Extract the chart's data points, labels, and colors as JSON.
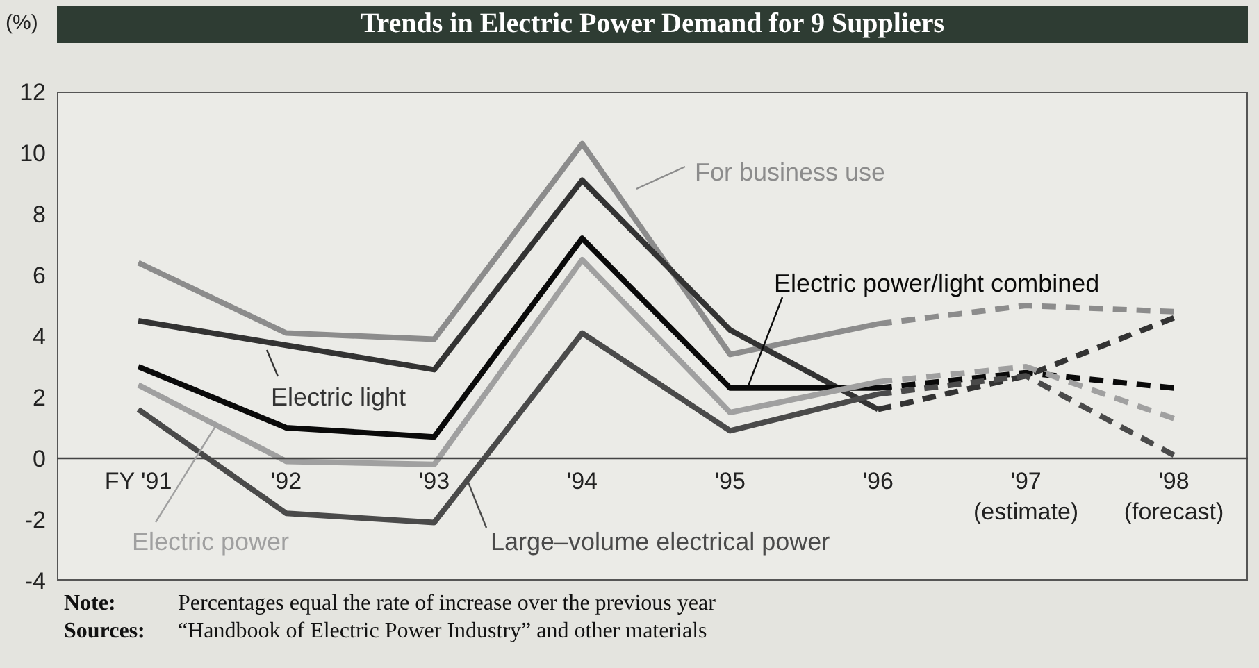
{
  "chart_data": {
    "type": "line",
    "title": "Trends in Electric Power Demand for 9 Suppliers",
    "ylabel": "(%)",
    "categories": [
      "FY '91",
      "'92",
      "'93",
      "'94",
      "'95",
      "'96",
      "'97\n(estimate)",
      "'98\n(forecast)"
    ],
    "series": [
      {
        "name": "For business use",
        "color": "#8c8c8c",
        "line_style": "solid",
        "values": [
          6.4,
          4.1,
          3.9,
          10.3,
          3.4,
          4.4,
          null,
          null
        ]
      },
      {
        "name": "Electric light",
        "color": "#333333",
        "line_style": "solid",
        "values": [
          4.5,
          3.7,
          2.9,
          9.1,
          4.2,
          1.6,
          null,
          null
        ]
      },
      {
        "name": "Electric power/light combined",
        "color": "#0a0a0a",
        "line_style": "solid",
        "values": [
          3.0,
          1.0,
          0.7,
          7.2,
          2.3,
          2.3,
          null,
          null
        ]
      },
      {
        "name": "Electric power",
        "color": "#a0a0a0",
        "line_style": "solid",
        "values": [
          2.4,
          -0.1,
          -0.2,
          6.5,
          1.5,
          2.5,
          null,
          null
        ]
      },
      {
        "name": "Large–volume electrical power",
        "color": "#4a4a4a",
        "line_style": "solid",
        "values": [
          1.6,
          -1.8,
          -2.1,
          4.1,
          0.9,
          2.1,
          null,
          null
        ]
      },
      {
        "color": "#8c8c8c",
        "line_style": "dashed",
        "values": [
          null,
          null,
          null,
          null,
          null,
          4.4,
          5.0,
          4.8
        ]
      },
      {
        "color": "#333333",
        "line_style": "dashed",
        "values": [
          null,
          null,
          null,
          null,
          null,
          1.6,
          2.7,
          4.6
        ]
      },
      {
        "color": "#0a0a0a",
        "line_style": "dashed",
        "values": [
          null,
          null,
          null,
          null,
          null,
          2.3,
          2.8,
          2.3
        ]
      },
      {
        "color": "#a0a0a0",
        "line_style": "dashed",
        "values": [
          null,
          null,
          null,
          null,
          null,
          2.5,
          3.0,
          1.3
        ]
      },
      {
        "color": "#4a4a4a",
        "line_style": "dashed",
        "values": [
          null,
          null,
          null,
          null,
          null,
          2.1,
          2.7,
          0.1
        ]
      }
    ],
    "ylim": [
      -4,
      12
    ],
    "yticks": [
      -4,
      -2,
      0,
      2,
      4,
      6,
      8,
      10,
      12
    ],
    "legend": "bottom",
    "annotations": [
      "Note: Percentages equal the rate of increase over the previous year",
      "Sources: “Handbook of Electric Power Industry” and other materials"
    ]
  }
}
